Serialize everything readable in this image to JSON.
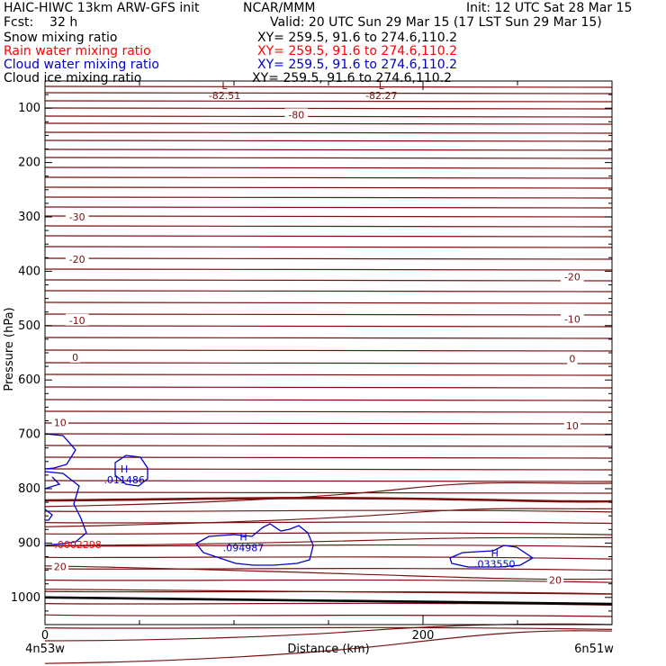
{
  "header": {
    "model": "HAIC-HIWC 13km ARW-GFS init",
    "org": "NCAR/MMM",
    "init": "Init: 12 UTC Sat 28 Mar 15",
    "fcst": "Fcst:    32 h",
    "valid": "Valid: 20 UTC Sun 29 Mar 15 (17 LST Sun 29 Mar 15)",
    "fields": [
      {
        "label": "Snow mixing ratio",
        "xy": "XY= 259.5, 91.6 to 274.6,110.2",
        "color": "#000000"
      },
      {
        "label": "Rain water mixing ratio",
        "xy": "XY= 259.5, 91.6 to 274.6,110.2",
        "color": "#ff0000"
      },
      {
        "label": "Cloud water mixing ratio",
        "xy": "XY= 259.5, 91.6 to 274.6,110.2",
        "color": "#0000cc"
      },
      {
        "label": "Cloud ice mixing ratio",
        "xy": "XY= 259.5, 91.6 to 274.6,110.2",
        "color": "#000000"
      }
    ]
  },
  "chart_data": {
    "type": "contour-cross-section",
    "xlabel": "Distance (km)",
    "ylabel": "Pressure (hPa)",
    "xlim": [
      0,
      300
    ],
    "ylim": [
      1050,
      50
    ],
    "x_ticks": [
      "0",
      "200"
    ],
    "y_ticks": [
      "100",
      "200",
      "300",
      "400",
      "500",
      "600",
      "700",
      "800",
      "900",
      "1000"
    ],
    "x_endpoints": {
      "left": "4n53w",
      "right": "6n51w"
    },
    "temperature_contours": {
      "color": "#7a1010",
      "interval": 2,
      "labels": [
        {
          "text": "-80",
          "x": 133,
          "p": 112
        },
        {
          "text": "-30",
          "x": 17,
          "p": 300
        },
        {
          "text": "-20",
          "x": 17,
          "p": 378
        },
        {
          "text": "-20",
          "x": 279,
          "p": 410
        },
        {
          "text": "-10",
          "x": 17,
          "p": 490
        },
        {
          "text": "-10",
          "x": 279,
          "p": 488
        },
        {
          "text": "0",
          "x": 16,
          "p": 558
        },
        {
          "text": "0",
          "x": 279,
          "p": 561
        },
        {
          "text": "10",
          "x": 8,
          "p": 678
        },
        {
          "text": "10",
          "x": 279,
          "p": 684
        },
        {
          "text": "20",
          "x": 8,
          "p": 943
        },
        {
          "text": "20",
          "x": 270,
          "p": 968
        }
      ],
      "lows": [
        {
          "symbol": "L",
          "value": "-82.51",
          "x": 95,
          "p": 55
        },
        {
          "symbol": "L",
          "value": "-82.27",
          "x": 178,
          "p": 55
        }
      ]
    },
    "cloud_water": {
      "color": "#0000cc",
      "maxima": [
        {
          "symbol": "H",
          "value": ".011486",
          "x": 42,
          "p": 780
        },
        {
          "symbol": "H",
          "value": ".094987",
          "x": 105,
          "p": 905
        },
        {
          "symbol": "H",
          "value": ".033550",
          "x": 238,
          "p": 935
        }
      ]
    },
    "rain_water": {
      "color": "#ff0000",
      "maxima": [
        {
          "value": ".0002298",
          "x": 6,
          "p": 903
        }
      ]
    }
  }
}
